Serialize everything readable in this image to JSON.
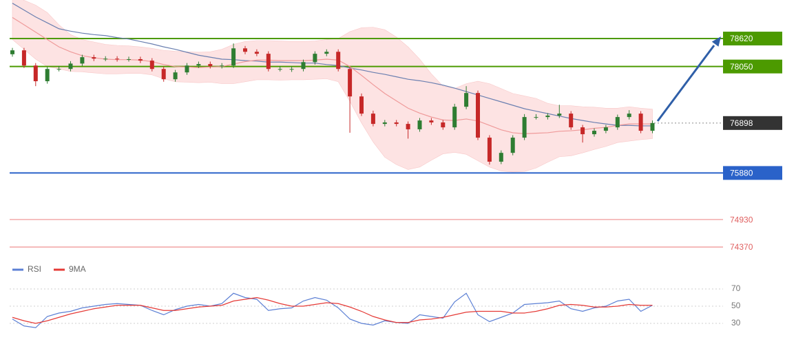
{
  "chart_data": [
    {
      "type": "candlestick",
      "open": [
        78300,
        78380,
        78070,
        77750,
        78000,
        78000,
        78110,
        78240,
        78210,
        78210,
        78200,
        78200,
        78170,
        78000,
        77790,
        77930,
        78070,
        78100,
        78060,
        78070,
        78420,
        78350,
        78310,
        78000,
        78000,
        78000,
        78140,
        78310,
        78350,
        78000,
        77440,
        77090,
        76880,
        76910,
        76880,
        76770,
        76950,
        76910,
        76810,
        77230,
        77510,
        76600,
        76110,
        76290,
        76600,
        77020,
        77020,
        77050,
        77090,
        76810,
        76670,
        76740,
        76810,
        77020,
        77090,
        76740
      ],
      "high": [
        78430,
        78430,
        78120,
        78050,
        78060,
        78160,
        78290,
        78290,
        78260,
        78260,
        78250,
        78250,
        78220,
        78050,
        77980,
        78120,
        78150,
        78150,
        78120,
        78520,
        78470,
        78400,
        78360,
        78060,
        78050,
        78190,
        78360,
        78400,
        78400,
        78050,
        77500,
        77150,
        76960,
        76960,
        76930,
        77000,
        77000,
        76960,
        77290,
        77650,
        77560,
        76650,
        76340,
        76650,
        77080,
        77080,
        77100,
        77270,
        77140,
        76860,
        76790,
        76860,
        77070,
        77160,
        77140,
        76950
      ],
      "low": [
        78250,
        78020,
        77650,
        77700,
        77950,
        77950,
        78060,
        78160,
        78160,
        78150,
        78150,
        78120,
        77950,
        77740,
        77740,
        77880,
        78020,
        78010,
        78010,
        78020,
        78300,
        78260,
        77950,
        77950,
        77940,
        77950,
        78090,
        78260,
        77950,
        76700,
        77040,
        76830,
        76830,
        76830,
        76580,
        76720,
        76860,
        76760,
        76760,
        77180,
        76550,
        76050,
        76060,
        76240,
        76550,
        76970,
        76970,
        77000,
        76760,
        76500,
        76620,
        76690,
        76760,
        76970,
        76690,
        76690
      ],
      "close": [
        78380,
        78070,
        77750,
        78000,
        78000,
        78110,
        78240,
        78210,
        78210,
        78200,
        78200,
        78170,
        78000,
        77790,
        77930,
        78070,
        78100,
        78060,
        78070,
        78420,
        78350,
        78310,
        78000,
        78000,
        78000,
        78140,
        78310,
        78350,
        78000,
        77440,
        77090,
        76880,
        76910,
        76880,
        76770,
        76950,
        76910,
        76810,
        77230,
        77510,
        76600,
        76110,
        76290,
        76600,
        77020,
        77020,
        77050,
        77090,
        76810,
        76670,
        76740,
        76810,
        77020,
        77090,
        76740,
        76898
      ],
      "up_color": "#2e7d32",
      "down_color": "#c62828",
      "overlays": [
        {
          "color": "#6a7fb0",
          "values": [
            79340,
            79200,
            79060,
            78940,
            78820,
            78770,
            78730,
            78700,
            78680,
            78640,
            78610,
            78560,
            78510,
            78450,
            78400,
            78340,
            78280,
            78240,
            78200,
            78190,
            78170,
            78160,
            78140,
            78140,
            78130,
            78120,
            78120,
            78090,
            78070,
            78020,
            77980,
            77930,
            77890,
            77840,
            77790,
            77760,
            77720,
            77670,
            77610,
            77540,
            77470,
            77400,
            77330,
            77260,
            77190,
            77140,
            77090,
            77040,
            76990,
            76950,
            76910,
            76880,
            76850,
            76850,
            76840,
            76840
          ]
        },
        {
          "color": "#ef9a9a",
          "values": [
            79050,
            78900,
            78750,
            78600,
            78450,
            78350,
            78270,
            78230,
            78200,
            78190,
            78190,
            78180,
            78150,
            78090,
            78050,
            78040,
            78030,
            78040,
            78050,
            78100,
            78150,
            78180,
            78180,
            78170,
            78170,
            78170,
            78180,
            78200,
            78180,
            78050,
            77870,
            77680,
            77500,
            77350,
            77200,
            77100,
            77020,
            76960,
            76950,
            76980,
            76940,
            76850,
            76760,
            76700,
            76680,
            76690,
            76700,
            76730,
            76740,
            76760,
            76790,
            76810,
            76850,
            76880,
            76880,
            76880
          ]
        }
      ],
      "band": {
        "color": "#fde3e3",
        "upper": [
          79500,
          79400,
          79300,
          79150,
          78900,
          78700,
          78600,
          78550,
          78500,
          78480,
          78470,
          78450,
          78420,
          78380,
          78360,
          78350,
          78340,
          78350,
          78400,
          78500,
          78560,
          78580,
          78580,
          78570,
          78560,
          78560,
          78570,
          78600,
          78620,
          78760,
          78840,
          78850,
          78800,
          78650,
          78450,
          78200,
          77900,
          77650,
          77600,
          77700,
          77750,
          77700,
          77600,
          77500,
          77450,
          77400,
          77300,
          77250,
          77250,
          77230,
          77220,
          77200,
          77200,
          77230,
          77200,
          77180
        ],
        "lower": [
          78600,
          78400,
          78200,
          78050,
          78000,
          77950,
          77940,
          77920,
          77900,
          77900,
          77910,
          77910,
          77880,
          77800,
          77740,
          77730,
          77720,
          77730,
          77700,
          77700,
          77740,
          77780,
          77780,
          77770,
          77780,
          77780,
          77790,
          77800,
          77740,
          77340,
          76900,
          76510,
          76200,
          76050,
          75950,
          76000,
          76140,
          76270,
          76300,
          76260,
          76130,
          76000,
          75920,
          75900,
          75910,
          75980,
          76100,
          76210,
          76230,
          76290,
          76360,
          76420,
          76500,
          76530,
          76560,
          76580
        ]
      },
      "levels": [
        {
          "value": 78620,
          "color": "#4c9a00",
          "line_color": "#4c9a00",
          "label_style": "box",
          "dashed": false
        },
        {
          "value": 78050,
          "color": "#4c9a00",
          "line_color": "#4c9a00",
          "label_style": "box",
          "dashed": false
        },
        {
          "value": 76898,
          "color": "#333333",
          "line_color": "#aaaaaa",
          "label_style": "box",
          "dashed": true
        },
        {
          "value": 75880,
          "color": "#2a62c9",
          "line_color": "#2a62c9",
          "label_style": "box",
          "dashed": false
        },
        {
          "value": 74930,
          "color": "#e06060",
          "line_color": "#f09a9a",
          "label_style": "text",
          "dashed": false
        },
        {
          "value": 74370,
          "color": "#e06060",
          "line_color": "#f09a9a",
          "label_style": "text",
          "dashed": false
        }
      ],
      "ylim": [
        74200,
        79400
      ]
    },
    {
      "type": "line",
      "series": [
        {
          "name": "RSI",
          "color": "#5b7fd4",
          "values": [
            35,
            27,
            25,
            38,
            42,
            44,
            48,
            50,
            52,
            53,
            52,
            51,
            45,
            40,
            46,
            50,
            52,
            50,
            53,
            65,
            60,
            58,
            45,
            47,
            48,
            56,
            60,
            57,
            48,
            35,
            30,
            28,
            33,
            31,
            30,
            40,
            38,
            36,
            55,
            65,
            40,
            32,
            37,
            42,
            52,
            53,
            54,
            56,
            47,
            44,
            48,
            50,
            56,
            58,
            44,
            51
          ]
        },
        {
          "name": "9MA",
          "color": "#e53935",
          "values": [
            37,
            33,
            30,
            33,
            37,
            41,
            44,
            47,
            49,
            51,
            51,
            51,
            48,
            45,
            45,
            47,
            49,
            50,
            51,
            56,
            58,
            60,
            57,
            53,
            50,
            50,
            52,
            54,
            53,
            49,
            44,
            38,
            34,
            31,
            31,
            34,
            35,
            37,
            40,
            43,
            44,
            44,
            44,
            42,
            42,
            44,
            47,
            51,
            52,
            51,
            49,
            49,
            50,
            52,
            51,
            51
          ]
        }
      ],
      "ylim": [
        14,
        80
      ],
      "yticks": [
        70,
        50,
        30
      ],
      "grid": true
    }
  ]
}
